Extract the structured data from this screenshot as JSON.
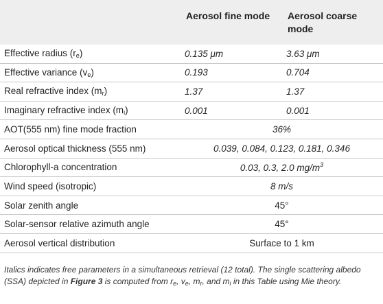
{
  "header": {
    "col1": "",
    "col2": "Aerosol fine mode",
    "col3": "Aerosol coarse mode"
  },
  "rows": [
    {
      "label": "Effective radius (r",
      "label_sub": "e",
      "label_end": ")",
      "fine": "0.135 μm",
      "coarse": "3.63 μm"
    },
    {
      "label": "Effective variance (v",
      "label_sub": "e",
      "label_end": ")",
      "fine": "0.193",
      "coarse": "0.704"
    },
    {
      "label": "Real refractive index (m",
      "label_sub": "r",
      "label_end": ")",
      "fine": "1.37",
      "coarse": "1.37"
    },
    {
      "label": "Imaginary refractive index (m",
      "label_sub": "i",
      "label_end": ")",
      "fine": "0.001",
      "coarse": "0.001"
    },
    {
      "label": "AOT(555 nm) fine mode fraction",
      "value": "36%"
    },
    {
      "label": "Aerosol optical thickness (555 nm)",
      "value": "0.039, 0.084, 0.123, 0.181, 0.346"
    },
    {
      "label": "Chlorophyll-a concentration",
      "value": "0.03, 0.3, 2.0 mg/m",
      "value_sup": "3"
    },
    {
      "label": "Wind speed (isotropic)",
      "value": "8 m/s"
    },
    {
      "label": "Solar zenith angle",
      "value": "45°"
    },
    {
      "label": "Solar-sensor relative azimuth angle",
      "value": "45°"
    },
    {
      "label": "Aerosol vertical distribution",
      "value": "Surface to 1 km"
    }
  ],
  "note": {
    "part1": "Italics indicates free parameters in a simultaneous retrieval (12 total). The single scattering albedo (SSA) depicted in ",
    "bold": "Figure 3",
    "part2": " is computed from r",
    "s1": "e",
    "part3": ", v",
    "s2": "e",
    "part4": ", m",
    "s3": "r",
    "part5": ", and m",
    "s4": "i",
    "part6": " in this Table using Mie theory."
  }
}
